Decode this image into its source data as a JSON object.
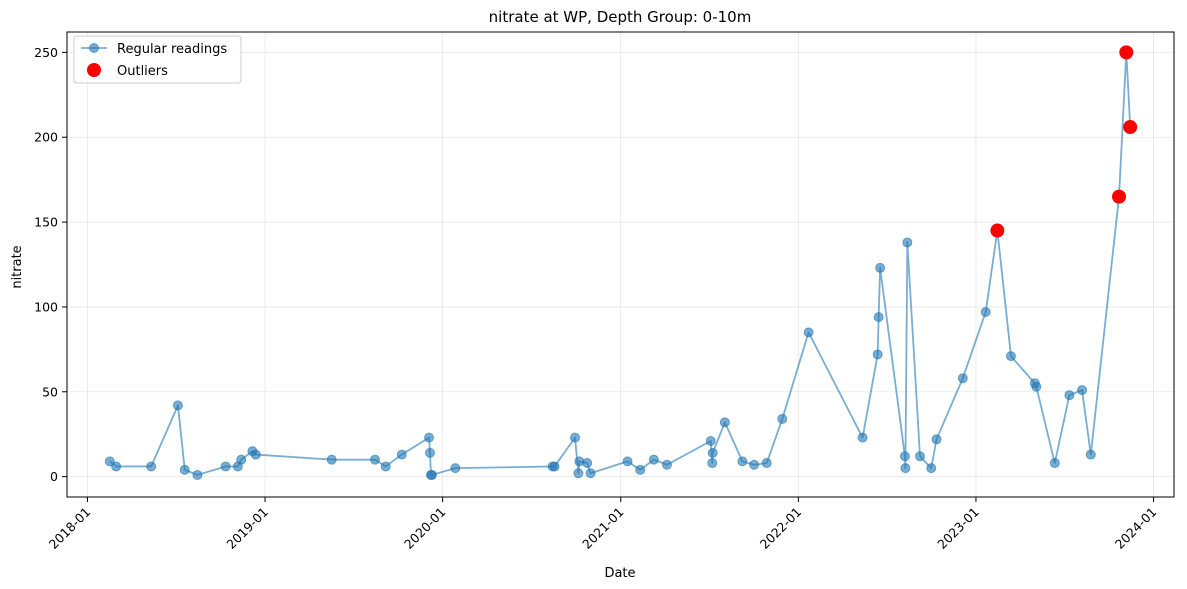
{
  "chart_data": {
    "type": "line",
    "title": "nitrate at WP, Depth Group: 0-10m",
    "xlabel": "Date",
    "ylabel": "nitrate",
    "xlim": [
      "2017-11-20",
      "2024-02-12"
    ],
    "ylim": [
      -12,
      262
    ],
    "x_ticks": [
      "2018-01-01",
      "2019-01-01",
      "2020-01-01",
      "2021-01-01",
      "2022-01-01",
      "2023-01-01",
      "2024-01-01"
    ],
    "x_tick_labels": [
      "2018-01",
      "2019-01",
      "2020-01",
      "2021-01",
      "2022-01",
      "2023-01",
      "2024-01"
    ],
    "y_ticks": [
      0,
      50,
      100,
      150,
      200,
      250
    ],
    "y_tick_labels": [
      "0",
      "50",
      "100",
      "150",
      "200",
      "250"
    ],
    "grid": true,
    "legend_position": "top-left",
    "series": [
      {
        "name": "Regular readings",
        "color": "#1f77b4",
        "points": [
          [
            "2018-02-16",
            9
          ],
          [
            "2018-03-01",
            6
          ],
          [
            "2018-05-12",
            6
          ],
          [
            "2018-07-06",
            42
          ],
          [
            "2018-07-20",
            4
          ],
          [
            "2018-08-15",
            1
          ],
          [
            "2018-10-12",
            6
          ],
          [
            "2018-11-06",
            6
          ],
          [
            "2018-11-13",
            10
          ],
          [
            "2018-12-06",
            15
          ],
          [
            "2018-12-13",
            13
          ],
          [
            "2019-05-18",
            10
          ],
          [
            "2019-08-15",
            10
          ],
          [
            "2019-09-06",
            6
          ],
          [
            "2019-10-09",
            13
          ],
          [
            "2019-12-04",
            23
          ],
          [
            "2019-12-06",
            14
          ],
          [
            "2019-12-08",
            1
          ],
          [
            "2019-12-10",
            1
          ],
          [
            "2020-01-27",
            5
          ],
          [
            "2020-08-14",
            6
          ],
          [
            "2020-08-18",
            6
          ],
          [
            "2020-09-29",
            23
          ],
          [
            "2020-10-06",
            2
          ],
          [
            "2020-10-08",
            9
          ],
          [
            "2020-10-24",
            8
          ],
          [
            "2020-10-31",
            2
          ],
          [
            "2021-01-15",
            9
          ],
          [
            "2021-02-10",
            4
          ],
          [
            "2021-03-10",
            10
          ],
          [
            "2021-04-06",
            7
          ],
          [
            "2021-07-05",
            21
          ],
          [
            "2021-07-08",
            8
          ],
          [
            "2021-07-09",
            14
          ],
          [
            "2021-08-03",
            32
          ],
          [
            "2021-09-08",
            9
          ],
          [
            "2021-10-02",
            7
          ],
          [
            "2021-10-28",
            8
          ],
          [
            "2021-11-29",
            34
          ],
          [
            "2022-01-22",
            85
          ],
          [
            "2022-05-13",
            23
          ],
          [
            "2022-06-13",
            72
          ],
          [
            "2022-06-15",
            94
          ],
          [
            "2022-06-18",
            123
          ],
          [
            "2022-08-08",
            12
          ],
          [
            "2022-08-09",
            5
          ],
          [
            "2022-08-13",
            138
          ],
          [
            "2022-09-08",
            12
          ],
          [
            "2022-10-01",
            5
          ],
          [
            "2022-10-12",
            22
          ],
          [
            "2022-12-05",
            58
          ],
          [
            "2023-01-21",
            97
          ],
          [
            "2023-02-14",
            145
          ],
          [
            "2023-03-14",
            71
          ],
          [
            "2023-05-02",
            55
          ],
          [
            "2023-05-05",
            53
          ],
          [
            "2023-06-12",
            8
          ],
          [
            "2023-07-12",
            48
          ],
          [
            "2023-08-07",
            51
          ],
          [
            "2023-08-25",
            13
          ],
          [
            "2023-10-22",
            165
          ],
          [
            "2023-11-06",
            250
          ],
          [
            "2023-11-14",
            206
          ]
        ]
      },
      {
        "name": "Outliers",
        "color": "#ff0000",
        "points": [
          [
            "2023-02-14",
            145
          ],
          [
            "2023-10-22",
            165
          ],
          [
            "2023-11-06",
            250
          ],
          [
            "2023-11-14",
            206
          ]
        ]
      }
    ]
  }
}
